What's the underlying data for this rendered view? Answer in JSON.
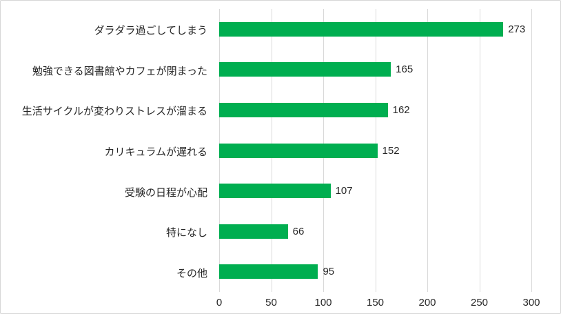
{
  "chart_data": {
    "type": "bar",
    "orientation": "horizontal",
    "title": "",
    "xlabel": "",
    "ylabel": "",
    "categories": [
      "ダラダラ過ごしてしまう",
      "勉強できる図書館やカフェが閉まった",
      "生活サイクルが変わりストレスが溜まる",
      "カリキュラムが遅れる",
      "受験の日程が心配",
      "特になし",
      "その他"
    ],
    "values": [
      273,
      165,
      162,
      152,
      107,
      66,
      95
    ],
    "x_ticks": [
      0,
      50,
      100,
      150,
      200,
      250,
      300
    ],
    "xlim": [
      0,
      300
    ],
    "grid": "vertical",
    "legend_position": "none",
    "data_labels": true,
    "colors": {
      "bar": "#00ae50",
      "gridline": "#d9d9d9",
      "text": "#262626",
      "background": "#ffffff",
      "frame_border": "#d6d6d6"
    }
  }
}
